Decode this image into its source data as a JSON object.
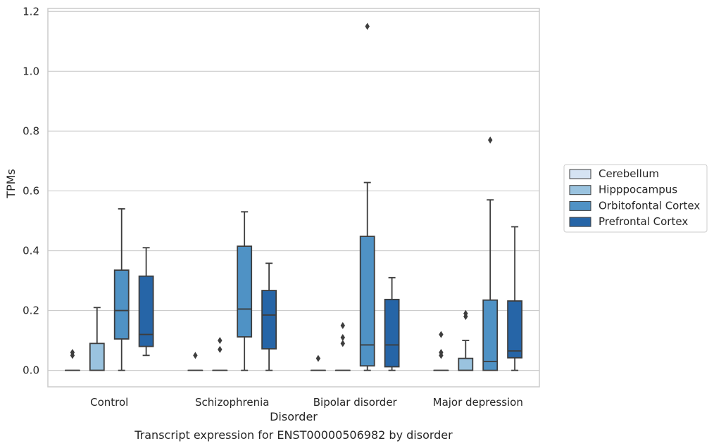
{
  "chart_data": {
    "type": "box",
    "caption": "Transcript expression for ENST00000506982 by disorder",
    "xlabel": "Disorder",
    "ylabel": "TPMs",
    "ylim": [
      -0.055,
      1.21
    ],
    "yticks": [
      0.0,
      0.2,
      0.4,
      0.6,
      0.8,
      1.0,
      1.2
    ],
    "ytick_labels": [
      "0.0",
      "0.2",
      "0.4",
      "0.6",
      "0.8",
      "1.0",
      "1.2"
    ],
    "grid": "horizontal",
    "legend_position": "right",
    "categories": [
      "Control",
      "Schizophrenia",
      "Bipolar disorder",
      "Major depression"
    ],
    "series": [
      {
        "name": "Cerebellum",
        "color": "#d5e3f3",
        "boxes": [
          {
            "min": 0.0,
            "q1": 0.0,
            "median": 0.0,
            "q3": 0.0,
            "max": 0.0,
            "outliers": [
              0.05,
              0.06
            ]
          },
          {
            "min": 0.0,
            "q1": 0.0,
            "median": 0.0,
            "q3": 0.0,
            "max": 0.0,
            "outliers": [
              0.05
            ]
          },
          {
            "min": 0.0,
            "q1": 0.0,
            "median": 0.0,
            "q3": 0.0,
            "max": 0.0,
            "outliers": [
              0.04
            ]
          },
          {
            "min": 0.0,
            "q1": 0.0,
            "median": 0.0,
            "q3": 0.0,
            "max": 0.0,
            "outliers": [
              0.05,
              0.06,
              0.12
            ]
          }
        ]
      },
      {
        "name": "Hipppocampus",
        "color": "#9ac3df",
        "boxes": [
          {
            "min": 0.0,
            "q1": 0.0,
            "median": 0.0,
            "q3": 0.09,
            "max": 0.21,
            "outliers": []
          },
          {
            "min": 0.0,
            "q1": 0.0,
            "median": 0.0,
            "q3": 0.0,
            "max": 0.0,
            "outliers": [
              0.07,
              0.1
            ]
          },
          {
            "min": 0.0,
            "q1": 0.0,
            "median": 0.0,
            "q3": 0.0,
            "max": 0.0,
            "outliers": [
              0.09,
              0.11,
              0.15
            ]
          },
          {
            "min": 0.0,
            "q1": 0.0,
            "median": 0.0,
            "q3": 0.04,
            "max": 0.1,
            "outliers": [
              0.18,
              0.19
            ]
          }
        ]
      },
      {
        "name": "Orbitofontal Cortex",
        "color": "#4f92c5",
        "boxes": [
          {
            "min": 0.0,
            "q1": 0.105,
            "median": 0.2,
            "q3": 0.335,
            "max": 0.54,
            "outliers": []
          },
          {
            "min": 0.0,
            "q1": 0.112,
            "median": 0.205,
            "q3": 0.415,
            "max": 0.53,
            "outliers": []
          },
          {
            "min": 0.0,
            "q1": 0.015,
            "median": 0.085,
            "q3": 0.448,
            "max": 0.628,
            "outliers": [
              1.15
            ]
          },
          {
            "min": 0.0,
            "q1": 0.0,
            "median": 0.03,
            "q3": 0.235,
            "max": 0.57,
            "outliers": [
              0.77
            ]
          }
        ]
      },
      {
        "name": "Prefrontal Cortex",
        "color": "#2665a7",
        "boxes": [
          {
            "min": 0.05,
            "q1": 0.08,
            "median": 0.12,
            "q3": 0.315,
            "max": 0.41,
            "outliers": []
          },
          {
            "min": 0.0,
            "q1": 0.072,
            "median": 0.185,
            "q3": 0.267,
            "max": 0.358,
            "outliers": []
          },
          {
            "min": 0.0,
            "q1": 0.012,
            "median": 0.085,
            "q3": 0.237,
            "max": 0.31,
            "outliers": []
          },
          {
            "min": 0.0,
            "q1": 0.042,
            "median": 0.065,
            "q3": 0.232,
            "max": 0.48,
            "outliers": []
          }
        ]
      }
    ]
  }
}
